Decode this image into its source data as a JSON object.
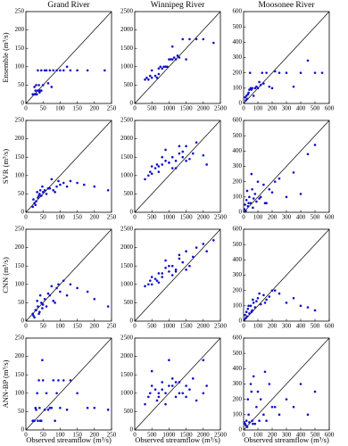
{
  "chart_data": [
    {
      "type": "scatter",
      "title": "Grand River",
      "y_label": "Ensemble (m³/s)",
      "color": "#1010c8",
      "xlim": [
        0,
        250
      ],
      "ylim": [
        0,
        250
      ],
      "xticks": [
        0,
        50,
        100,
        150,
        200,
        250
      ],
      "yticks": [
        0,
        50,
        100,
        150,
        200,
        250
      ],
      "x": [
        20,
        25,
        30,
        35,
        40,
        45,
        50,
        60,
        70,
        80,
        90,
        100,
        110,
        120,
        130,
        150,
        180,
        230,
        25,
        30,
        40,
        55,
        65,
        35,
        45,
        28,
        32,
        38,
        42,
        75
      ],
      "y": [
        25,
        25,
        25,
        35,
        35,
        35,
        50,
        90,
        90,
        90,
        90,
        90,
        90,
        100,
        90,
        90,
        90,
        90,
        45,
        50,
        30,
        90,
        55,
        90,
        90,
        35,
        25,
        50,
        35,
        45
      ]
    },
    {
      "type": "scatter",
      "title": "Winnipeg River",
      "color": "#1010c8",
      "xlim": [
        0,
        2500
      ],
      "ylim": [
        0,
        2500
      ],
      "xticks": [
        0,
        500,
        1000,
        1500,
        2000,
        2500
      ],
      "yticks": [
        0,
        500,
        1000,
        1500,
        2000,
        2500
      ],
      "x": [
        300,
        350,
        400,
        450,
        500,
        600,
        700,
        750,
        800,
        900,
        1000,
        1100,
        1200,
        1300,
        1400,
        1500,
        1600,
        1800,
        2000,
        2300,
        500,
        650,
        850,
        950,
        1050,
        1150,
        1250,
        700,
        900,
        1100
      ],
      "y": [
        650,
        700,
        650,
        750,
        700,
        750,
        950,
        1000,
        950,
        1000,
        1200,
        1200,
        1200,
        1250,
        1750,
        1200,
        1750,
        1750,
        1750,
        1650,
        900,
        700,
        1000,
        1000,
        1200,
        1250,
        1300,
        800,
        1000,
        1550
      ]
    },
    {
      "type": "scatter",
      "title": "Moosonee River",
      "color": "#1010c8",
      "xlim": [
        0,
        600
      ],
      "ylim": [
        0,
        600
      ],
      "xticks": [
        0,
        100,
        200,
        300,
        400,
        500,
        600
      ],
      "yticks": [
        0,
        100,
        200,
        300,
        400,
        500,
        600
      ],
      "x": [
        10,
        20,
        30,
        40,
        50,
        60,
        70,
        80,
        90,
        100,
        120,
        140,
        160,
        180,
        200,
        250,
        300,
        350,
        400,
        450,
        500,
        550,
        15,
        25,
        35,
        45,
        55,
        110,
        130,
        220
      ],
      "y": [
        40,
        50,
        60,
        90,
        100,
        100,
        50,
        100,
        110,
        100,
        120,
        130,
        200,
        110,
        100,
        200,
        200,
        110,
        200,
        280,
        200,
        200,
        20,
        30,
        70,
        200,
        90,
        140,
        200,
        210
      ]
    },
    {
      "type": "scatter",
      "y_label": "SVR (m³/s)",
      "color": "#1010c8",
      "xlim": [
        0,
        250
      ],
      "ylim": [
        0,
        250
      ],
      "xticks": [
        0,
        50,
        100,
        150,
        200,
        250
      ],
      "yticks": [
        0,
        50,
        100,
        150,
        200,
        250
      ],
      "x": [
        20,
        25,
        30,
        35,
        40,
        45,
        50,
        55,
        60,
        70,
        80,
        90,
        100,
        110,
        120,
        130,
        150,
        170,
        200,
        240,
        22,
        28,
        33,
        38,
        42,
        48,
        65,
        75,
        85,
        95
      ],
      "y": [
        15,
        25,
        30,
        40,
        50,
        45,
        55,
        60,
        50,
        65,
        60,
        70,
        75,
        80,
        70,
        85,
        80,
        75,
        70,
        60,
        35,
        20,
        55,
        45,
        60,
        70,
        65,
        90,
        55,
        85
      ]
    },
    {
      "type": "scatter",
      "color": "#1010c8",
      "xlim": [
        0,
        2500
      ],
      "ylim": [
        0,
        2500
      ],
      "xticks": [
        0,
        500,
        1000,
        1500,
        2000,
        2500
      ],
      "yticks": [
        0,
        500,
        1000,
        1500,
        2000,
        2500
      ],
      "x": [
        300,
        400,
        450,
        500,
        600,
        700,
        800,
        900,
        1000,
        1100,
        1200,
        1300,
        1400,
        1500,
        1600,
        1700,
        1800,
        2000,
        2100,
        500,
        700,
        900,
        1100,
        1300,
        1500,
        800,
        1000,
        1200,
        650,
        1400
      ],
      "y": [
        900,
        1000,
        1100,
        1050,
        1200,
        1250,
        1300,
        1400,
        1350,
        1500,
        1400,
        1600,
        1500,
        1800,
        1450,
        1600,
        1900,
        1550,
        1300,
        1250,
        1100,
        1700,
        1200,
        1800,
        1400,
        1500,
        1350,
        1200,
        1300,
        1650
      ]
    },
    {
      "type": "scatter",
      "color": "#1010c8",
      "xlim": [
        0,
        600
      ],
      "ylim": [
        0,
        600
      ],
      "xticks": [
        0,
        100,
        200,
        300,
        400,
        500,
        600
      ],
      "yticks": [
        0,
        100,
        200,
        300,
        400,
        500,
        600
      ],
      "x": [
        5,
        10,
        20,
        30,
        40,
        50,
        60,
        70,
        80,
        90,
        100,
        120,
        140,
        160,
        180,
        200,
        250,
        300,
        350,
        400,
        450,
        500,
        15,
        25,
        35,
        55,
        65,
        110,
        150,
        220
      ],
      "y": [
        20,
        50,
        80,
        40,
        100,
        60,
        150,
        90,
        120,
        70,
        200,
        100,
        180,
        60,
        150,
        130,
        220,
        100,
        260,
        120,
        380,
        440,
        10,
        140,
        60,
        250,
        30,
        90,
        60,
        200
      ]
    },
    {
      "type": "scatter",
      "y_label": "CNN (m³/s)",
      "color": "#1010c8",
      "xlim": [
        0,
        250
      ],
      "ylim": [
        0,
        250
      ],
      "xticks": [
        0,
        50,
        100,
        150,
        200,
        250
      ],
      "yticks": [
        0,
        50,
        100,
        150,
        200,
        250
      ],
      "x": [
        20,
        25,
        30,
        35,
        40,
        45,
        50,
        55,
        60,
        70,
        80,
        90,
        100,
        110,
        120,
        130,
        150,
        180,
        200,
        240,
        22,
        28,
        33,
        38,
        42,
        48,
        65,
        75,
        85,
        95
      ],
      "y": [
        20,
        10,
        30,
        40,
        25,
        50,
        45,
        60,
        40,
        70,
        55,
        90,
        80,
        110,
        70,
        100,
        90,
        80,
        60,
        40,
        15,
        30,
        55,
        20,
        70,
        35,
        75,
        95,
        50,
        100
      ]
    },
    {
      "type": "scatter",
      "color": "#1010c8",
      "xlim": [
        0,
        2500
      ],
      "ylim": [
        0,
        2500
      ],
      "xticks": [
        0,
        500,
        1000,
        1500,
        2000,
        2500
      ],
      "yticks": [
        0,
        500,
        1000,
        1500,
        2000,
        2500
      ],
      "x": [
        300,
        400,
        450,
        500,
        600,
        700,
        800,
        900,
        1000,
        1100,
        1200,
        1300,
        1400,
        1500,
        1600,
        1700,
        1800,
        2000,
        2100,
        500,
        700,
        900,
        1100,
        1300,
        1500,
        800,
        1000,
        1200,
        650,
        2300
      ],
      "y": [
        950,
        1000,
        1100,
        1000,
        1150,
        1300,
        1200,
        1450,
        1350,
        1500,
        1400,
        1700,
        1600,
        1900,
        1500,
        1750,
        2000,
        2100,
        1900,
        1200,
        1050,
        1650,
        1250,
        1800,
        1400,
        1300,
        1500,
        1350,
        1100,
        2200
      ]
    },
    {
      "type": "scatter",
      "color": "#1010c8",
      "xlim": [
        0,
        600
      ],
      "ylim": [
        0,
        600
      ],
      "xticks": [
        0,
        100,
        200,
        300,
        400,
        500,
        600
      ],
      "yticks": [
        0,
        100,
        200,
        300,
        400,
        500,
        600
      ],
      "x": [
        5,
        10,
        20,
        30,
        40,
        50,
        60,
        70,
        80,
        90,
        100,
        120,
        140,
        160,
        180,
        200,
        250,
        300,
        350,
        400,
        450,
        500,
        15,
        25,
        35,
        55,
        65,
        110,
        150,
        220
      ],
      "y": [
        10,
        40,
        60,
        80,
        50,
        100,
        70,
        120,
        90,
        130,
        150,
        110,
        170,
        140,
        160,
        200,
        180,
        120,
        150,
        100,
        90,
        70,
        20,
        30,
        100,
        60,
        140,
        180,
        120,
        200
      ]
    },
    {
      "type": "scatter",
      "y_label": "ANN-BP (m³/s)",
      "x_label": "Observed streamflow (m³/s)",
      "color": "#1010c8",
      "xlim": [
        0,
        250
      ],
      "ylim": [
        0,
        250
      ],
      "xticks": [
        0,
        50,
        100,
        150,
        200,
        250
      ],
      "yticks": [
        0,
        50,
        100,
        150,
        200,
        250
      ],
      "x": [
        20,
        25,
        30,
        35,
        40,
        45,
        50,
        55,
        60,
        70,
        80,
        90,
        100,
        110,
        120,
        130,
        150,
        180,
        200,
        240,
        22,
        28,
        33,
        38,
        42,
        48,
        65,
        75,
        85,
        95
      ],
      "y": [
        25,
        25,
        55,
        25,
        60,
        25,
        135,
        55,
        100,
        60,
        135,
        100,
        60,
        135,
        55,
        135,
        100,
        60,
        60,
        55,
        25,
        60,
        100,
        135,
        25,
        190,
        55,
        60,
        25,
        135
      ]
    },
    {
      "type": "scatter",
      "x_label": "Observed streamflow (m³/s)",
      "color": "#1010c8",
      "xlim": [
        0,
        2500
      ],
      "ylim": [
        0,
        2500
      ],
      "xticks": [
        0,
        500,
        1000,
        1500,
        2000,
        2500
      ],
      "yticks": [
        0,
        500,
        1000,
        1500,
        2000,
        2500
      ],
      "x": [
        300,
        400,
        450,
        500,
        600,
        700,
        800,
        900,
        1000,
        1100,
        1200,
        1300,
        1400,
        1500,
        1600,
        1700,
        1800,
        2000,
        2100,
        500,
        700,
        900,
        1100,
        1300,
        1500,
        800,
        1000,
        1200,
        650,
        2000
      ],
      "y": [
        700,
        900,
        1000,
        1200,
        1100,
        900,
        1300,
        1000,
        1900,
        1200,
        900,
        1300,
        1000,
        1200,
        1100,
        1400,
        800,
        1900,
        1200,
        1600,
        1000,
        700,
        1400,
        1000,
        900,
        1100,
        1200,
        1300,
        800,
        1000
      ]
    },
    {
      "type": "scatter",
      "x_label": "Observed streamflow (m³/s)",
      "color": "#1010c8",
      "xlim": [
        0,
        600
      ],
      "ylim": [
        0,
        600
      ],
      "xticks": [
        0,
        100,
        200,
        300,
        400,
        500,
        600
      ],
      "yticks": [
        0,
        100,
        200,
        300,
        400,
        500,
        600
      ],
      "x": [
        5,
        10,
        20,
        30,
        40,
        50,
        60,
        70,
        80,
        90,
        100,
        120,
        140,
        160,
        180,
        200,
        250,
        300,
        350,
        400,
        450,
        500,
        15,
        25,
        35,
        55,
        65,
        110,
        150,
        220
      ],
      "y": [
        50,
        40,
        60,
        200,
        50,
        300,
        60,
        350,
        40,
        150,
        250,
        200,
        100,
        60,
        300,
        150,
        100,
        200,
        150,
        300,
        100,
        250,
        30,
        20,
        100,
        250,
        40,
        60,
        380,
        150
      ]
    }
  ]
}
